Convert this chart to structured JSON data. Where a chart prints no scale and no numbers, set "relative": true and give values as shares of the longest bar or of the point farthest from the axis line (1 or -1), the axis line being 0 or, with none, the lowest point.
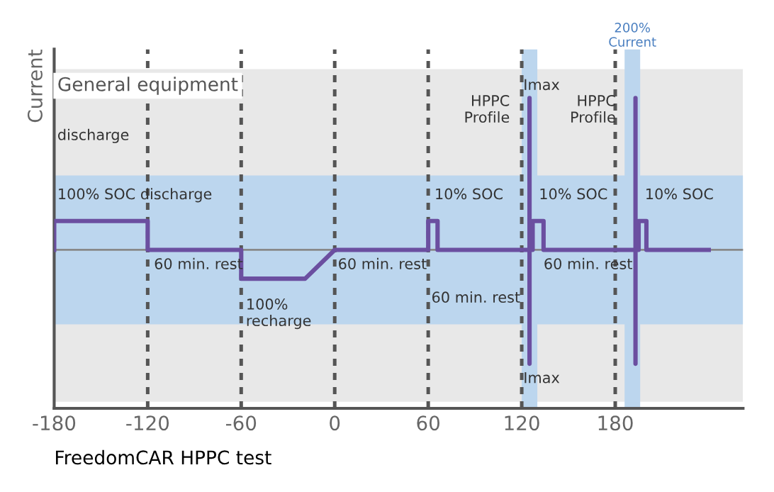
{
  "chart_data": {
    "type": "line",
    "relative": true,
    "xlabel": "FreedomCAR HPPC test",
    "ylabel": "Current",
    "x": [
      -180,
      -180,
      -120,
      -120,
      -60,
      -60,
      -19,
      0,
      60,
      60,
      66,
      66,
      125,
      125,
      125,
      125,
      127,
      127,
      134,
      134,
      193,
      193,
      193,
      193,
      195,
      195,
      200,
      200,
      240
    ],
    "series": [
      {
        "color": "#6b4fa0",
        "values": [
          0,
          0.19,
          0.19,
          0,
          0,
          -0.19,
          -0.19,
          0,
          0,
          0.19,
          0.19,
          0,
          0,
          1,
          -0.75,
          0,
          0,
          0.19,
          0.19,
          0,
          0,
          1,
          -0.75,
          0,
          0,
          0.19,
          0.19,
          0,
          0
        ]
      }
    ],
    "xlim": [
      -180,
      262
    ],
    "xticks": [
      -180,
      -120,
      -60,
      0,
      60,
      120,
      180
    ],
    "tick_labels": "x",
    "grid": false,
    "legend": false,
    "line_style": "solid",
    "marker": "none",
    "bands": [
      {
        "axis": "y",
        "from": -1.0,
        "to": 1.19,
        "label": "General equipment",
        "color": "#e8e8e8"
      },
      {
        "axis": "y",
        "from": -0.49,
        "to": 0.49,
        "color": "#bcd6ee"
      },
      {
        "axis": "x",
        "from": 120,
        "to": 130,
        "color": "#bcd6ee"
      },
      {
        "axis": "x",
        "from": 186,
        "to": 196,
        "label": "200%\nCurrent",
        "color": "#bcd6ee"
      }
    ],
    "ref_lines": [
      {
        "axis": "y",
        "value": 0,
        "color": "#888888",
        "line_style": "solid"
      },
      {
        "axis": "x",
        "value": -120,
        "color": "#555555",
        "line_style": "dotted"
      },
      {
        "axis": "x",
        "value": -60,
        "color": "#555555",
        "line_style": "dotted"
      },
      {
        "axis": "x",
        "value": 0,
        "color": "#555555",
        "line_style": "dotted"
      },
      {
        "axis": "x",
        "value": 60,
        "color": "#555555",
        "line_style": "dotted"
      },
      {
        "axis": "x",
        "value": 120,
        "color": "#555555",
        "line_style": "dotted"
      },
      {
        "axis": "x",
        "value": 180,
        "color": "#555555",
        "line_style": "dotted"
      }
    ],
    "annotations": [
      {
        "text": "discharge",
        "x": -178,
        "y": 0.75
      },
      {
        "text": "100% SOC discharge",
        "x": -178,
        "y": 0.36
      },
      {
        "text": "60 min. rest",
        "x": -116,
        "y": -0.1
      },
      {
        "text": "100%\nrecharge",
        "x": -57,
        "y": -0.42
      },
      {
        "text": "60 min. rest",
        "x": 2,
        "y": -0.1
      },
      {
        "text": "10% SOC",
        "x": 64,
        "y": 0.36
      },
      {
        "text": "60 min. rest",
        "x": 62,
        "y": -0.32
      },
      {
        "text": "HPPC\nProfile",
        "x": 125,
        "y": 0.92
      },
      {
        "text": "Imax",
        "x": 121,
        "y": 1.08
      },
      {
        "text": "10% SOC",
        "x": 131,
        "y": 0.36
      },
      {
        "text": "HPPC\nProfile",
        "x": 193,
        "y": 0.92
      },
      {
        "text": "60 min. rest",
        "x": 134,
        "y": -0.1
      },
      {
        "text": "10% SOC",
        "x": 199,
        "y": 0.36
      },
      {
        "text": "Imax",
        "x": 121,
        "y": -0.85
      }
    ]
  }
}
